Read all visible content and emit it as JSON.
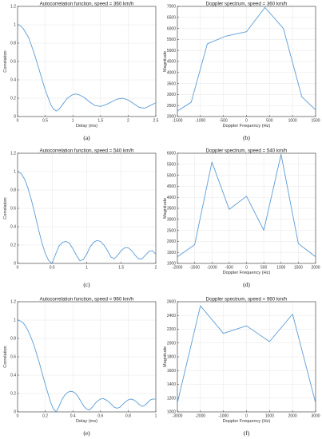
{
  "chart_data": [
    {
      "type": "line",
      "title": "Autocorrelation function, speed = 360 km/h",
      "xlabel": "Delay (ms)",
      "ylabel": "Correlation",
      "caption": "(a)",
      "xlim": [
        0,
        2.5
      ],
      "ylim": [
        0,
        1.2
      ],
      "xticks": [
        0,
        0.5,
        1,
        1.5,
        2,
        2.5
      ],
      "xtick_labels": [
        "0",
        "0.5",
        "1",
        "1.5",
        "2",
        "2.5"
      ],
      "yticks": [
        0,
        0.2,
        0.4,
        0.6,
        0.8,
        1,
        1.2
      ],
      "ytick_labels": [
        "0",
        "0.2",
        "0.4",
        "0.6",
        "0.8",
        "1",
        "1.2"
      ],
      "grid": true,
      "color": "#5b9bd5",
      "series": [
        {
          "x": [
            0,
            0.05,
            0.1,
            0.2,
            0.3,
            0.4,
            0.5,
            0.6,
            0.65,
            0.7,
            0.75,
            0.8,
            0.9,
            1.0,
            1.05,
            1.1,
            1.2,
            1.3,
            1.4,
            1.5,
            1.6,
            1.7,
            1.8,
            1.9,
            2.0,
            2.1,
            2.2,
            2.3,
            2.4,
            2.5
          ],
          "y": [
            1,
            0.99,
            0.96,
            0.86,
            0.69,
            0.49,
            0.29,
            0.13,
            0.08,
            0.06,
            0.08,
            0.12,
            0.2,
            0.24,
            0.245,
            0.24,
            0.21,
            0.16,
            0.12,
            0.11,
            0.13,
            0.16,
            0.19,
            0.2,
            0.18,
            0.14,
            0.1,
            0.09,
            0.12,
            0.15
          ]
        }
      ]
    },
    {
      "type": "line",
      "title": "Doppler spectrum, speed = 360 km/h",
      "xlabel": "Doppler Frequency (Hz)",
      "ylabel": "Magnitude",
      "caption": "(b)",
      "xlim": [
        -1500,
        1500
      ],
      "ylim": [
        2000,
        7000
      ],
      "xticks": [
        -1500,
        -1000,
        -500,
        0,
        500,
        1000,
        1500
      ],
      "xtick_labels": [
        "-1500",
        "-1000",
        "-500",
        "0",
        "500",
        "1000",
        "1500"
      ],
      "yticks": [
        2000,
        2500,
        3000,
        3500,
        4000,
        4500,
        5000,
        5500,
        6000,
        6500,
        7000
      ],
      "ytick_labels": [
        "2000",
        "2500",
        "3000",
        "3500",
        "4000",
        "4500",
        "5000",
        "5500",
        "6000",
        "6500",
        "7000"
      ],
      "grid": true,
      "color": "#5b9bd5",
      "series": [
        {
          "x": [
            -1500,
            -1200,
            -850,
            -450,
            0,
            400,
            800,
            1200,
            1500
          ],
          "y": [
            2250,
            2650,
            5300,
            5650,
            5850,
            6950,
            6000,
            2900,
            2300
          ]
        }
      ]
    },
    {
      "type": "line",
      "title": "Autocorrelation function, speed = 540 km/h",
      "xlabel": "",
      "ylabel": "Correlation",
      "caption": "(c)",
      "xlim": [
        0,
        2
      ],
      "ylim": [
        0,
        1.2
      ],
      "xticks": [
        0,
        0.5,
        1,
        1.5,
        2
      ],
      "xtick_labels": [
        "0",
        "0.5",
        "1",
        "1.5",
        "2"
      ],
      "yticks": [
        0,
        0.2,
        0.4,
        0.6,
        0.8,
        1,
        1.2
      ],
      "ytick_labels": [
        "0",
        "0.2",
        "0.4",
        "0.6",
        "0.8",
        "1",
        "1.2"
      ],
      "grid": true,
      "color": "#5b9bd5",
      "series": [
        {
          "x": [
            0,
            0.05,
            0.1,
            0.15,
            0.2,
            0.25,
            0.3,
            0.35,
            0.4,
            0.45,
            0.5,
            0.55,
            0.6,
            0.65,
            0.7,
            0.75,
            0.8,
            0.85,
            0.9,
            0.95,
            1.0,
            1.05,
            1.1,
            1.15,
            1.2,
            1.25,
            1.3,
            1.35,
            1.4,
            1.45,
            1.5,
            1.55,
            1.6,
            1.65,
            1.7,
            1.75,
            1.8,
            1.85,
            1.9,
            1.95,
            2.0
          ],
          "y": [
            1,
            0.98,
            0.92,
            0.82,
            0.69,
            0.54,
            0.38,
            0.23,
            0.11,
            0.03,
            0.0,
            0.1,
            0.19,
            0.23,
            0.24,
            0.22,
            0.16,
            0.09,
            0.03,
            0.04,
            0.1,
            0.18,
            0.23,
            0.25,
            0.24,
            0.2,
            0.14,
            0.07,
            0.05,
            0.09,
            0.14,
            0.17,
            0.17,
            0.14,
            0.09,
            0.05,
            0.05,
            0.09,
            0.13,
            0.14,
            0.1
          ]
        }
      ]
    },
    {
      "type": "line",
      "title": "Doppler spectrum, speed = 540 km/h",
      "xlabel": "Doppler Frequency (Hz)",
      "ylabel": "Magnitude",
      "caption": "(d)",
      "xlim": [
        -2000,
        2000
      ],
      "ylim": [
        1000,
        6000
      ],
      "xticks": [
        -2000,
        -1500,
        -1000,
        -500,
        0,
        500,
        1000,
        1500,
        2000
      ],
      "xtick_labels": [
        "-2000",
        "-1500",
        "-1000",
        "-500",
        "0",
        "500",
        "1000",
        "1500",
        "2000"
      ],
      "yticks": [
        1000,
        1500,
        2000,
        2500,
        3000,
        3500,
        4000,
        4500,
        5000,
        5500,
        6000
      ],
      "ytick_labels": [
        "1000",
        "1500",
        "2000",
        "2500",
        "3000",
        "3500",
        "4000",
        "4500",
        "5000",
        "5500",
        "6000"
      ],
      "grid": true,
      "color": "#5b9bd5",
      "series": [
        {
          "x": [
            -2000,
            -1500,
            -1000,
            -500,
            0,
            500,
            1000,
            1500,
            2000
          ],
          "y": [
            1300,
            1850,
            5600,
            3450,
            4050,
            2500,
            5950,
            1900,
            1300
          ]
        }
      ]
    },
    {
      "type": "line",
      "title": "Autocorrelation function, speed = 960 km/h",
      "xlabel": "Delay (ms)",
      "ylabel": "Correlation",
      "caption": "(e)",
      "xlim": [
        0,
        1
      ],
      "ylim": [
        0,
        1.2
      ],
      "xticks": [
        0,
        0.2,
        0.4,
        0.6,
        0.8,
        1
      ],
      "xtick_labels": [
        "0",
        "0.2",
        "0.4",
        "0.6",
        "0.8",
        "1"
      ],
      "yticks": [
        0,
        0.2,
        0.4,
        0.6,
        0.8,
        1,
        1.2
      ],
      "ytick_labels": [
        "0",
        "0.2",
        "0.4",
        "0.6",
        "0.8",
        "1",
        "1.2"
      ],
      "grid": true,
      "color": "#5b9bd5",
      "series": [
        {
          "x": [
            0,
            0.02,
            0.04,
            0.06,
            0.08,
            0.1,
            0.12,
            0.14,
            0.16,
            0.18,
            0.2,
            0.22,
            0.24,
            0.26,
            0.28,
            0.3,
            0.32,
            0.34,
            0.36,
            0.38,
            0.4,
            0.42,
            0.44,
            0.46,
            0.48,
            0.5,
            0.52,
            0.54,
            0.56,
            0.58,
            0.6,
            0.62,
            0.64,
            0.66,
            0.68,
            0.7,
            0.72,
            0.74,
            0.76,
            0.78,
            0.8,
            0.82,
            0.84,
            0.86,
            0.88,
            0.9,
            0.92,
            0.94,
            0.96,
            0.98,
            1.0
          ],
          "y": [
            1,
            0.99,
            0.97,
            0.93,
            0.87,
            0.8,
            0.72,
            0.62,
            0.52,
            0.41,
            0.3,
            0.2,
            0.1,
            0.03,
            0.0,
            0.06,
            0.13,
            0.18,
            0.21,
            0.225,
            0.22,
            0.2,
            0.16,
            0.11,
            0.06,
            0.03,
            0.02,
            0.05,
            0.09,
            0.12,
            0.14,
            0.145,
            0.13,
            0.11,
            0.08,
            0.05,
            0.04,
            0.05,
            0.08,
            0.11,
            0.13,
            0.14,
            0.13,
            0.11,
            0.08,
            0.06,
            0.07,
            0.1,
            0.13,
            0.14,
            0.14
          ]
        }
      ]
    },
    {
      "type": "line",
      "title": "Doppler spectrum, speed = 960 km/h",
      "xlabel": "Doppler Frequency (Hz)",
      "ylabel": "Magnitude",
      "caption": "(f)",
      "xlim": [
        -3000,
        3000
      ],
      "ylim": [
        1000,
        2600
      ],
      "xticks": [
        -3000,
        -2000,
        -1000,
        0,
        1000,
        2000,
        3000
      ],
      "xtick_labels": [
        "-3000",
        "-2000",
        "-1000",
        "0",
        "1000",
        "2000",
        "3000"
      ],
      "yticks": [
        1000,
        1200,
        1400,
        1600,
        1800,
        2000,
        2200,
        2400,
        2600
      ],
      "ytick_labels": [
        "1000",
        "1200",
        "1400",
        "1600",
        "1800",
        "2000",
        "2200",
        "2400",
        "2600"
      ],
      "grid": true,
      "color": "#5b9bd5",
      "series": [
        {
          "x": [
            -3000,
            -2000,
            -1000,
            0,
            1000,
            2000,
            3000
          ],
          "y": [
            1130,
            2540,
            2140,
            2250,
            2020,
            2420,
            1130
          ]
        }
      ]
    }
  ]
}
